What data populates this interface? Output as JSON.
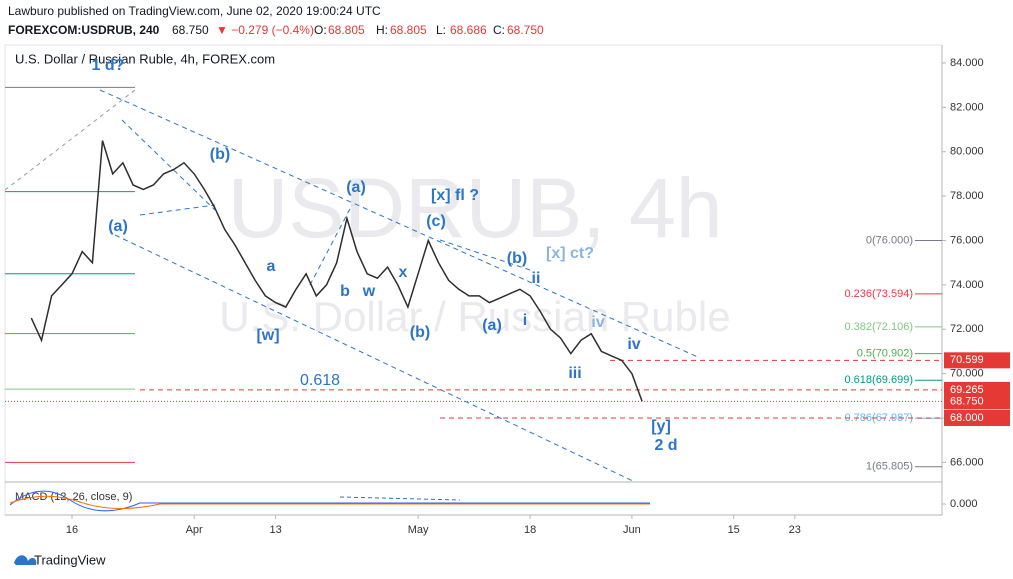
{
  "header": {
    "published": "Lawburo published on TradingView.com, June 02, 2020 19:00:24 UTC",
    "symbol": "FOREXCOM:USDRUB, 240",
    "last": "68.750",
    "change": "▼ −0.279 (−0.4%)",
    "ohlc": [
      {
        "label": "O:",
        "value": "68.805"
      },
      {
        "label": "H:",
        "value": "68.805"
      },
      {
        "label": "L:",
        "value": "68.686"
      },
      {
        "label": "C:",
        "value": "68.750"
      }
    ]
  },
  "footer": {
    "brand": "TradingView"
  },
  "chart_data": {
    "type": "line",
    "title": "U.S. Dollar / Russian Ruble, 4h, FOREX.com",
    "watermark": {
      "symbol": "USDRUB, 4h",
      "name": "U.S. Dollar / Russian Ruble"
    },
    "categories": [
      null,
      null,
      null,
      null,
      "16",
      null,
      null,
      null,
      null,
      null,
      null,
      null,
      null,
      null,
      null,
      null,
      "Apr",
      null,
      null,
      null,
      null,
      null,
      null,
      null,
      "13",
      null,
      null,
      null,
      null,
      null,
      null,
      null,
      null,
      null,
      null,
      null,
      null,
      null,
      "May",
      null,
      null,
      null,
      null,
      null,
      null,
      null,
      null,
      null,
      null,
      "18",
      null,
      null,
      null,
      null,
      null,
      null,
      null,
      null,
      null,
      "Jun",
      null,
      null,
      null,
      null,
      null,
      null,
      null,
      null,
      null,
      "15",
      null,
      null,
      null,
      null,
      null,
      "23",
      null,
      null,
      null,
      null,
      null
    ],
    "series": [
      {
        "name": "USD/RUB",
        "color": "#2e2e2e",
        "values": [
          72.5,
          71.5,
          73.5,
          74.0,
          74.5,
          75.5,
          75.0,
          80.5,
          79.0,
          79.5,
          78.5,
          78.3,
          78.5,
          79.0,
          79.2,
          79.5,
          79.0,
          78.3,
          77.5,
          76.5,
          75.8,
          75.0,
          74.2,
          73.5,
          73.2,
          73.0,
          73.8,
          74.5,
          73.5,
          74.0,
          75.0,
          77.0,
          75.5,
          74.5,
          74.3,
          74.8,
          74.0,
          73.0,
          74.5,
          76.0,
          75.0,
          74.2,
          73.8,
          73.5,
          73.5,
          73.2,
          73.4,
          73.6,
          73.8,
          73.5,
          72.8,
          72.0,
          71.6,
          70.9,
          71.5,
          71.8,
          71.0,
          70.8,
          70.6,
          70.0,
          68.75,
          null,
          null,
          null,
          null,
          null,
          null,
          null,
          null,
          null,
          null,
          null,
          null,
          null,
          null,
          null,
          null,
          null,
          null,
          null,
          null
        ]
      }
    ],
    "ylim": [
      65.16,
      84.81
    ],
    "yticks": [
      {
        "value": 66,
        "label": "66.000"
      },
      {
        "value": 68,
        "label": "68.000"
      },
      {
        "value": 70,
        "label": "70.000"
      },
      {
        "value": 72,
        "label": "72.000"
      },
      {
        "value": 74,
        "label": "74.000"
      },
      {
        "value": 76,
        "label": "76.000"
      },
      {
        "value": 78,
        "label": "78.000"
      },
      {
        "value": 80,
        "label": "80.000"
      },
      {
        "value": 82,
        "label": "82.000"
      },
      {
        "value": 84,
        "label": "84.000"
      }
    ],
    "fib_levels": [
      {
        "label": "0(76.000)",
        "value": 76.0,
        "color": "#787b86"
      },
      {
        "label": "0.236(73.594)",
        "value": 73.594,
        "color": "#f23645"
      },
      {
        "label": "0.382(72.106)",
        "value": 72.106,
        "color": "#81c784"
      },
      {
        "label": "0.5(70.902)",
        "value": 70.902,
        "color": "#4caf50"
      },
      {
        "label": "0.618(69.699)",
        "value": 69.699,
        "color": "#089981"
      },
      {
        "label": "0.786(67.987)",
        "value": 67.987,
        "color": "#64b5f6"
      },
      {
        "label": "1(65.805)",
        "value": 65.805,
        "color": "#787b86"
      }
    ],
    "price_lines": [
      {
        "value": 70.599,
        "label": "70.599",
        "color": "#e53935"
      },
      {
        "value": 69.265,
        "label": "69.265",
        "color": "#e53935"
      },
      {
        "value": 68.75,
        "label": "68.750",
        "color": "#e53935"
      },
      {
        "value": 68.0,
        "label": "68.000",
        "color": "#e53935"
      }
    ],
    "reference_levels": [
      {
        "value": 82.9,
        "color": "#787b86"
      },
      {
        "value": 78.2,
        "color": "#089981"
      },
      {
        "value": 74.5,
        "color": "#089981"
      },
      {
        "value": 71.8,
        "color": "#4caf50"
      },
      {
        "value": 69.3,
        "color": "#81c784"
      },
      {
        "value": 66.0,
        "color": "#f23645"
      }
    ],
    "annotations": [
      "1 d?",
      "(b)",
      "(a)",
      "(a)",
      "[x] fl ?",
      "(c)",
      "(b)",
      "[x] ct?",
      "ii",
      "a",
      "b",
      "w",
      "x",
      "[w]",
      "(b)",
      "(a)",
      "i",
      "iv",
      "iv",
      "iii",
      "0.618",
      "[y]",
      "2 d"
    ],
    "macd": {
      "label": "MACD (12, 26, close, 9)",
      "yticks": [
        {
          "value": 0,
          "label": "0.000"
        }
      ]
    }
  }
}
